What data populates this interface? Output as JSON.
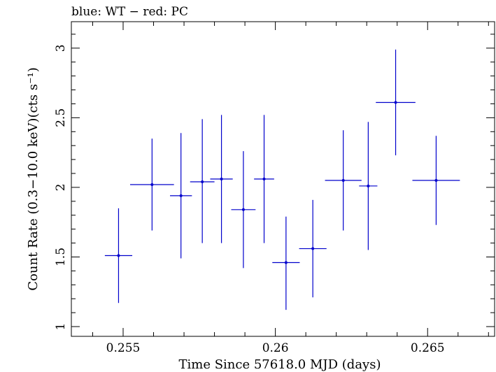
{
  "title": "blue: WT − red: PC",
  "chart_data": {
    "type": "scatter",
    "title": "blue: WT − red: PC",
    "xlabel": "Time Since 57618.0 MJD (days)",
    "ylabel": "Count Rate (0.3−10.0 keV)(cts s⁻¹)",
    "xlim": [
      0.2533,
      0.2672
    ],
    "ylim": [
      0.93,
      3.19
    ],
    "xticks": [
      0.255,
      0.26,
      0.265
    ],
    "xtick_labels": [
      "0.255",
      "0.26",
      "0.265"
    ],
    "yticks": [
      1,
      1.5,
      2,
      2.5,
      3
    ],
    "ytick_labels": [
      "1",
      "1.5",
      "2",
      "2.5",
      "3"
    ],
    "grid": false,
    "series": [
      {
        "color": "#0000cc",
        "points": [
          {
            "x": 0.25485,
            "y": 1.51,
            "xerr": 0.00045,
            "ylow": 1.17,
            "yhigh": 1.85
          },
          {
            "x": 0.25595,
            "y": 2.02,
            "xerr": 0.00072,
            "ylow": 1.69,
            "yhigh": 2.35
          },
          {
            "x": 0.2569,
            "y": 1.94,
            "xerr": 0.00036,
            "ylow": 1.49,
            "yhigh": 2.39
          },
          {
            "x": 0.2576,
            "y": 2.04,
            "xerr": 0.0004,
            "ylow": 1.6,
            "yhigh": 2.49
          },
          {
            "x": 0.25823,
            "y": 2.06,
            "xerr": 0.00037,
            "ylow": 1.6,
            "yhigh": 2.52
          },
          {
            "x": 0.25895,
            "y": 1.84,
            "xerr": 0.0004,
            "ylow": 1.42,
            "yhigh": 2.26
          },
          {
            "x": 0.25963,
            "y": 2.06,
            "xerr": 0.00033,
            "ylow": 1.6,
            "yhigh": 2.52
          },
          {
            "x": 0.26035,
            "y": 1.46,
            "xerr": 0.00045,
            "ylow": 1.12,
            "yhigh": 1.79
          },
          {
            "x": 0.26123,
            "y": 1.56,
            "xerr": 0.00045,
            "ylow": 1.21,
            "yhigh": 1.91
          },
          {
            "x": 0.26223,
            "y": 2.05,
            "xerr": 0.0006,
            "ylow": 1.69,
            "yhigh": 2.41
          },
          {
            "x": 0.26305,
            "y": 2.01,
            "xerr": 0.0003,
            "ylow": 1.55,
            "yhigh": 2.47
          },
          {
            "x": 0.26395,
            "y": 2.61,
            "xerr": 0.00065,
            "ylow": 2.23,
            "yhigh": 2.99
          },
          {
            "x": 0.26528,
            "y": 2.05,
            "xerr": 0.00078,
            "ylow": 1.73,
            "yhigh": 2.37
          }
        ]
      }
    ]
  }
}
